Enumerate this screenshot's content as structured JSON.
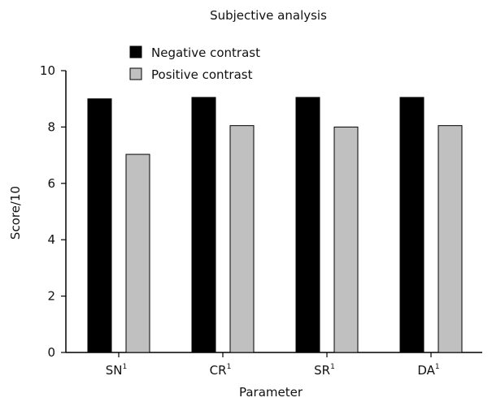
{
  "chart_data": {
    "type": "bar",
    "title": "Subjective analysis",
    "xlabel": "Parameter",
    "ylabel": "Score/10",
    "ylim": [
      0,
      10
    ],
    "yticks": [
      0,
      2,
      4,
      6,
      8,
      10
    ],
    "grid": false,
    "legend_position": "top-left",
    "categories": [
      {
        "label": "SN",
        "superscript": "1"
      },
      {
        "label": "CR",
        "superscript": "1"
      },
      {
        "label": "SR",
        "superscript": "1"
      },
      {
        "label": "DA",
        "superscript": "1"
      }
    ],
    "series": [
      {
        "name": "Negative contrast",
        "color": "#000000",
        "values": [
          9.0,
          9.05,
          9.05,
          9.05
        ]
      },
      {
        "name": "Positive contrast",
        "color": "#c0c0c0",
        "values": [
          7.03,
          8.05,
          8.0,
          8.05
        ]
      }
    ]
  }
}
